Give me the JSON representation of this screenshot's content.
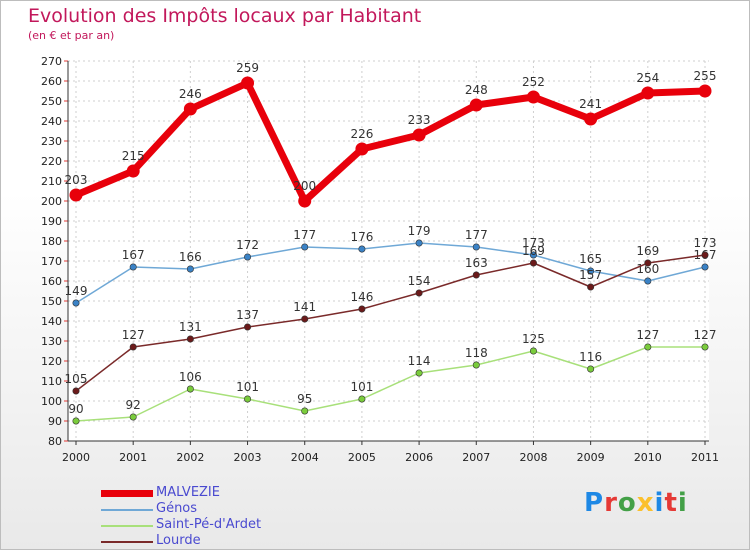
{
  "title": "Evolution des Impôts locaux par Habitant",
  "subtitle": "(en € et par an)",
  "logo": {
    "text": "Proxiti",
    "colors": [
      "#1e88e5",
      "#e53935",
      "#43a047",
      "#fbc02d",
      "#1e88e5",
      "#e53935",
      "#43a047"
    ]
  },
  "chart_data": {
    "type": "line",
    "title": "Evolution des Impôts locaux par Habitant",
    "subtitle": "(en € et par an)",
    "xlabel": "",
    "ylabel": "",
    "categories": [
      "2000",
      "2001",
      "2002",
      "2003",
      "2004",
      "2005",
      "2006",
      "2007",
      "2008",
      "2009",
      "2010",
      "2011"
    ],
    "yticks": [
      "80",
      "90",
      "100",
      "110",
      "120",
      "130",
      "140",
      "150",
      "160",
      "170",
      "180",
      "190",
      "200",
      "210",
      "220",
      "230",
      "240",
      "250",
      "260",
      "270"
    ],
    "ylim": [
      80,
      270
    ],
    "grid": true,
    "legend_position": "bottom-left",
    "series": [
      {
        "name": "MALVEZIE",
        "color": "#e8000b",
        "marker": "#e8000b",
        "width": 7,
        "values": [
          203,
          215,
          246,
          259,
          200,
          226,
          233,
          248,
          252,
          241,
          254,
          255
        ],
        "labels": [
          "203",
          "215",
          "246",
          "259",
          "200",
          "226",
          "233",
          "248",
          "252",
          "241",
          "254",
          "255"
        ]
      },
      {
        "name": "Génos",
        "color": "#6fa8d6",
        "marker": "#3a82c6",
        "width": 1.5,
        "values": [
          149,
          167,
          166,
          172,
          177,
          176,
          179,
          177,
          173,
          165,
          160,
          167
        ],
        "labels": [
          "149",
          "167",
          "166",
          "172",
          "177",
          "176",
          "179",
          "177",
          "173",
          "165",
          "160",
          "167"
        ]
      },
      {
        "name": "Saint-Pé-d'Ardet",
        "color": "#a8e07a",
        "marker": "#7acc3c",
        "width": 1.5,
        "values": [
          90,
          92,
          106,
          101,
          95,
          101,
          114,
          118,
          125,
          116,
          127,
          127
        ],
        "labels": [
          "90",
          "92",
          "106",
          "101",
          "95",
          "101",
          "114",
          "118",
          "125",
          "116",
          "127",
          "127"
        ]
      },
      {
        "name": "Lourde",
        "color": "#7a2a2a",
        "marker": "#6b1a1a",
        "width": 1.5,
        "values": [
          105,
          127,
          131,
          137,
          141,
          146,
          154,
          163,
          169,
          157,
          169,
          173
        ],
        "labels": [
          "105",
          "127",
          "131",
          "137",
          "141",
          "146",
          "154",
          "163",
          "169",
          "157",
          "169",
          "173"
        ]
      }
    ]
  }
}
